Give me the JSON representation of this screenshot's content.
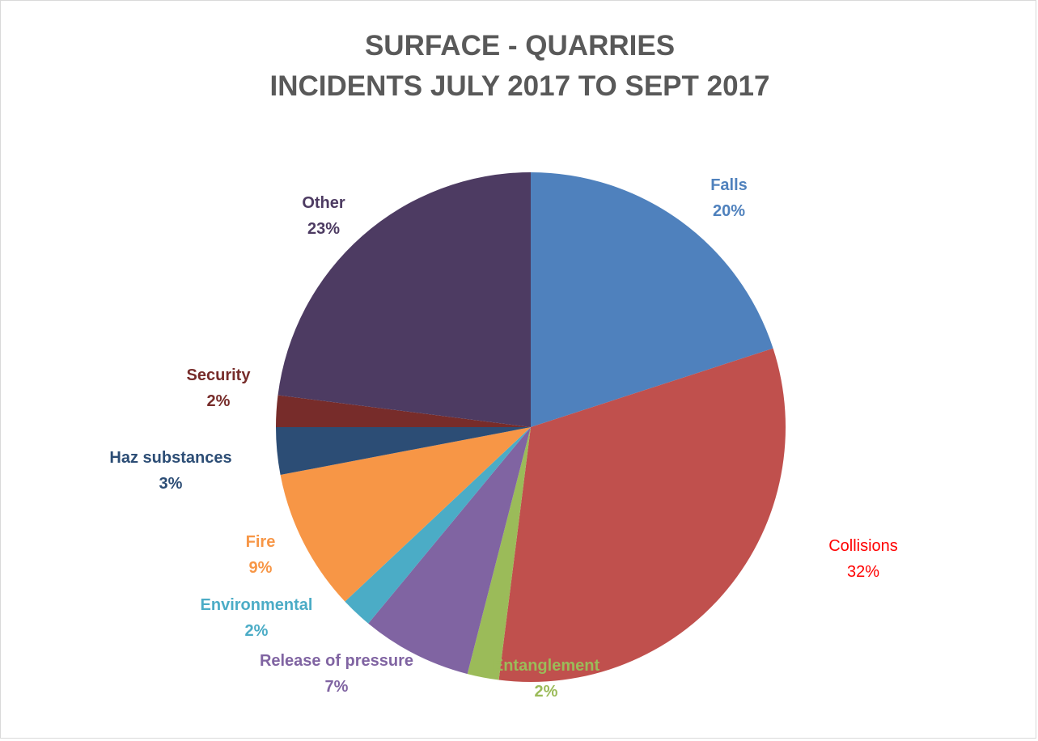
{
  "chart_data": {
    "type": "pie",
    "title": [
      "SURFACE - QUARRIES",
      "INCIDENTS JULY 2017 TO SEPT 2017"
    ],
    "slices": [
      {
        "name": "Falls",
        "label": "20%",
        "value": 20,
        "color": "#4F81BD",
        "label_color": "#4F81BD",
        "bold": true
      },
      {
        "name": "Collisions",
        "label": "32%",
        "value": 32,
        "color": "#C0504D",
        "label_color": "#FF0000",
        "bold": false
      },
      {
        "name": "Entanglement",
        "label": "2%",
        "value": 2,
        "color": "#9BBB59",
        "label_color": "#9BBB59",
        "bold": true
      },
      {
        "name": "Release of pressure",
        "label": "7%",
        "value": 7,
        "color": "#8064A2",
        "label_color": "#8064A2",
        "bold": true
      },
      {
        "name": "Environmental",
        "label": "2%",
        "value": 2,
        "color": "#4BACC6",
        "label_color": "#4BACC6",
        "bold": true
      },
      {
        "name": "Fire",
        "label": "9%",
        "value": 9,
        "color": "#F79646",
        "label_color": "#F79646",
        "bold": true
      },
      {
        "name": "Haz substances",
        "label": "3%",
        "value": 3,
        "color": "#2C4D75",
        "label_color": "#2C4D75",
        "bold": true
      },
      {
        "name": "Security",
        "label": "2%",
        "value": 2,
        "color": "#772C2A",
        "label_color": "#772C2A",
        "bold": true
      },
      {
        "name": "Other",
        "label": "23%",
        "value": 23,
        "color": "#4D3B62",
        "label_color": "#4D3B62",
        "bold": true
      }
    ],
    "start_angle_deg": 0,
    "direction": "clockwise",
    "legend": "none",
    "data_labels": "outside"
  }
}
